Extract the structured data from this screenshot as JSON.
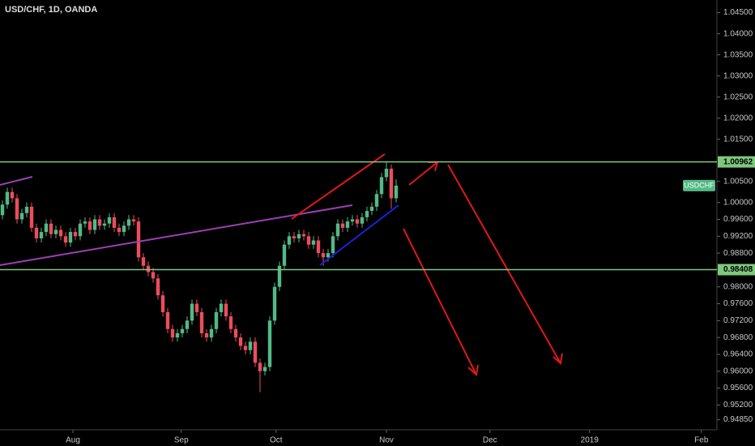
{
  "chart_data": {
    "type": "candlestick",
    "title": "USD/CHF, 1D, OANDA",
    "symbol_label": "USDCHF",
    "up_color": "#53b987",
    "down_color": "#eb4d5c",
    "open": [
      0.997,
      0.9995,
      1.0025,
      1.001,
      0.996,
      0.9975,
      0.999,
      0.994,
      0.9915,
      0.993,
      0.995,
      0.9925,
      0.9935,
      0.992,
      0.9905,
      0.993,
      0.992,
      0.995,
      0.9955,
      0.9935,
      0.996,
      0.9945,
      0.995,
      0.9965,
      0.994,
      0.993,
      0.9945,
      0.996,
      0.9955,
      0.987,
      0.985,
      0.9835,
      0.982,
      0.978,
      0.974,
      0.97,
      0.968,
      0.969,
      0.97,
      0.972,
      0.976,
      0.974,
      0.969,
      0.968,
      0.97,
      0.974,
      0.976,
      0.973,
      0.97,
      0.968,
      0.966,
      0.965,
      0.967,
      0.962,
      0.96,
      0.961,
      0.972,
      0.98,
      0.985,
      0.99,
      0.992,
      0.9915,
      0.9925,
      0.992,
      0.99,
      0.991,
      0.988,
      0.987,
      0.988,
      0.992,
      0.995,
      0.994,
      0.9955,
      0.996,
      0.995,
      0.9965,
      0.998,
      0.999,
      1.002,
      1.006,
      1.008,
      1.001
    ],
    "high": [
      1.0005,
      1.0035,
      1.0035,
      1.002,
      0.9985,
      1.0,
      1.0,
      0.995,
      0.994,
      0.996,
      0.996,
      0.9945,
      0.9945,
      0.993,
      0.994,
      0.994,
      0.996,
      0.9965,
      0.9965,
      0.997,
      0.997,
      0.996,
      0.9975,
      0.9975,
      0.995,
      0.9955,
      0.997,
      0.997,
      0.9965,
      0.988,
      0.986,
      0.9845,
      0.983,
      0.979,
      0.975,
      0.971,
      0.97,
      0.971,
      0.973,
      0.977,
      0.977,
      0.975,
      0.97,
      0.971,
      0.975,
      0.977,
      0.977,
      0.974,
      0.971,
      0.969,
      0.967,
      0.968,
      0.968,
      0.963,
      0.962,
      0.973,
      0.981,
      0.986,
      0.991,
      0.993,
      0.993,
      0.9935,
      0.9935,
      0.993,
      0.992,
      0.992,
      0.989,
      0.989,
      0.993,
      0.996,
      0.996,
      0.9965,
      0.997,
      0.997,
      0.9975,
      0.999,
      1.0,
      1.003,
      1.007,
      1.0096,
      1.009,
      1.0055
    ],
    "low": [
      0.996,
      0.9985,
      1.0,
      0.995,
      0.995,
      0.9965,
      0.993,
      0.9905,
      0.9905,
      0.992,
      0.9915,
      0.9915,
      0.991,
      0.9895,
      0.9895,
      0.991,
      0.991,
      0.994,
      0.9925,
      0.9925,
      0.9935,
      0.9935,
      0.994,
      0.993,
      0.992,
      0.992,
      0.9935,
      0.9945,
      0.986,
      0.984,
      0.9825,
      0.981,
      0.977,
      0.973,
      0.969,
      0.967,
      0.967,
      0.968,
      0.969,
      0.971,
      0.973,
      0.968,
      0.967,
      0.967,
      0.969,
      0.973,
      0.972,
      0.969,
      0.967,
      0.965,
      0.964,
      0.964,
      0.961,
      0.955,
      0.959,
      0.96,
      0.971,
      0.979,
      0.984,
      0.989,
      0.9905,
      0.9905,
      0.991,
      0.989,
      0.989,
      0.987,
      0.985,
      0.986,
      0.987,
      0.991,
      0.993,
      0.993,
      0.9945,
      0.994,
      0.994,
      0.9955,
      0.997,
      0.998,
      1.001,
      1.005,
      0.9985,
      1.0
    ],
    "close": [
      0.9995,
      1.0025,
      1.001,
      0.996,
      0.9975,
      0.999,
      0.994,
      0.9915,
      0.993,
      0.995,
      0.9925,
      0.9935,
      0.992,
      0.9905,
      0.993,
      0.992,
      0.995,
      0.9955,
      0.9935,
      0.996,
      0.9945,
      0.995,
      0.9965,
      0.994,
      0.993,
      0.9945,
      0.996,
      0.9955,
      0.987,
      0.985,
      0.9835,
      0.982,
      0.978,
      0.974,
      0.97,
      0.968,
      0.969,
      0.97,
      0.972,
      0.976,
      0.974,
      0.969,
      0.968,
      0.97,
      0.974,
      0.976,
      0.973,
      0.97,
      0.968,
      0.966,
      0.965,
      0.967,
      0.962,
      0.96,
      0.961,
      0.972,
      0.98,
      0.985,
      0.99,
      0.992,
      0.9915,
      0.9925,
      0.992,
      0.99,
      0.991,
      0.988,
      0.987,
      0.988,
      0.992,
      0.995,
      0.994,
      0.9955,
      0.996,
      0.995,
      0.9965,
      0.998,
      0.999,
      1.002,
      1.006,
      1.008,
      1.001,
      1.004
    ],
    "xlim": [
      0,
      147.5
    ],
    "xticks": [
      {
        "value": 15,
        "label": "Aug"
      },
      {
        "value": 37.3,
        "label": "Sep"
      },
      {
        "value": 56.8,
        "label": "Oct"
      },
      {
        "value": 79.5,
        "label": "Nov"
      },
      {
        "value": 100.8,
        "label": "Dec"
      },
      {
        "value": 121.3,
        "label": "2019"
      },
      {
        "value": 144.3,
        "label": "Feb"
      }
    ],
    "ylim": [
      0.9465,
      1.048
    ],
    "yticks": [
      {
        "value": 1.045,
        "label": "1.04500"
      },
      {
        "value": 1.04,
        "label": "1.04000"
      },
      {
        "value": 1.035,
        "label": "1.03500"
      },
      {
        "value": 1.03,
        "label": "1.03000"
      },
      {
        "value": 1.025,
        "label": "1.02500"
      },
      {
        "value": 1.02,
        "label": "1.02000"
      },
      {
        "value": 1.015,
        "label": "1.01500"
      },
      {
        "value": 1.005,
        "label": "1.00500"
      },
      {
        "value": 1.0,
        "label": "1.00000"
      },
      {
        "value": 0.996,
        "label": "0.99600"
      },
      {
        "value": 0.992,
        "label": "0.99200"
      },
      {
        "value": 0.988,
        "label": "0.98800"
      },
      {
        "value": 0.98,
        "label": "0.98000"
      },
      {
        "value": 0.976,
        "label": "0.97600"
      },
      {
        "value": 0.972,
        "label": "0.97200"
      },
      {
        "value": 0.968,
        "label": "0.96800"
      },
      {
        "value": 0.964,
        "label": "0.96400"
      },
      {
        "value": 0.96,
        "label": "0.96000"
      },
      {
        "value": 0.956,
        "label": "0.95600"
      },
      {
        "value": 0.952,
        "label": "0.95200"
      },
      {
        "value": 0.9485,
        "label": "0.94850"
      }
    ],
    "levels": [
      {
        "value": 1.00962,
        "label": "1.00962"
      },
      {
        "value": 0.98408,
        "label": "0.98408"
      }
    ],
    "level_color": "#7ec87e"
  }
}
